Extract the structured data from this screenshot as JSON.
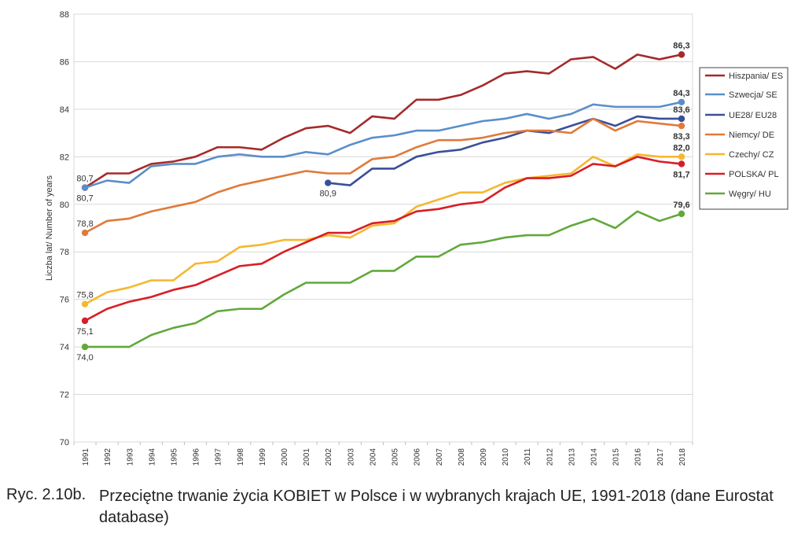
{
  "chart_data": {
    "type": "line",
    "title": "",
    "xlabel": "",
    "ylabel": "Liczba lat/ Number of years",
    "ylim": [
      70,
      88
    ],
    "yticks": [
      "70",
      "72",
      "74",
      "76",
      "78",
      "80",
      "82",
      "84",
      "86",
      "88"
    ],
    "x": [
      "1991",
      "1992",
      "1993",
      "1994",
      "1995",
      "1996",
      "1997",
      "1998",
      "1999",
      "2000",
      "2001",
      "2002",
      "2003",
      "2004",
      "2005",
      "2006",
      "2007",
      "2008",
      "2009",
      "2010",
      "2011",
      "2012",
      "2013",
      "2014",
      "2015",
      "2016",
      "2017",
      "2018"
    ],
    "legend_position": "right",
    "series": [
      {
        "name": "Hiszpania/ ES",
        "color": "#a52a2a",
        "values": [
          80.7,
          81.3,
          81.3,
          81.7,
          81.8,
          82.0,
          82.4,
          82.4,
          82.3,
          82.8,
          83.2,
          83.3,
          83.0,
          83.7,
          83.6,
          84.4,
          84.4,
          84.6,
          85.0,
          85.5,
          85.6,
          85.5,
          86.1,
          86.2,
          85.7,
          86.3,
          86.1,
          86.3
        ]
      },
      {
        "name": "Szwecja/ SE",
        "color": "#5b8ec9",
        "values": [
          80.7,
          81.0,
          80.9,
          81.6,
          81.7,
          81.7,
          82.0,
          82.1,
          82.0,
          82.0,
          82.2,
          82.1,
          82.5,
          82.8,
          82.9,
          83.1,
          83.1,
          83.3,
          83.5,
          83.6,
          83.8,
          83.6,
          83.8,
          84.2,
          84.1,
          84.1,
          84.1,
          84.3
        ]
      },
      {
        "name": "UE28/ EU28",
        "color": "#3a4f9a",
        "values": [
          null,
          null,
          null,
          null,
          null,
          null,
          null,
          null,
          null,
          null,
          null,
          80.9,
          80.8,
          81.5,
          81.5,
          82.0,
          82.2,
          82.3,
          82.6,
          82.8,
          83.1,
          83.0,
          83.3,
          83.6,
          83.3,
          83.7,
          83.6,
          83.6
        ]
      },
      {
        "name": "Niemcy/ DE",
        "color": "#e07a3a",
        "values": [
          78.8,
          79.3,
          79.4,
          79.7,
          79.9,
          80.1,
          80.5,
          80.8,
          81.0,
          81.2,
          81.4,
          81.3,
          81.3,
          81.9,
          82.0,
          82.4,
          82.7,
          82.7,
          82.8,
          83.0,
          83.1,
          83.1,
          83.0,
          83.6,
          83.1,
          83.5,
          83.4,
          83.3
        ]
      },
      {
        "name": "Czechy/ CZ",
        "color": "#f5b731",
        "values": [
          75.8,
          76.3,
          76.5,
          76.8,
          76.8,
          77.5,
          77.6,
          78.2,
          78.3,
          78.5,
          78.5,
          78.7,
          78.6,
          79.1,
          79.2,
          79.9,
          80.2,
          80.5,
          80.5,
          80.9,
          81.1,
          81.2,
          81.3,
          82.0,
          81.6,
          82.1,
          82.0,
          82.0
        ]
      },
      {
        "name": "POLSKA/ PL",
        "color": "#d81e25",
        "values": [
          75.1,
          75.6,
          75.9,
          76.1,
          76.4,
          76.6,
          77.0,
          77.4,
          77.5,
          78.0,
          78.4,
          78.8,
          78.8,
          79.2,
          79.3,
          79.7,
          79.8,
          80.0,
          80.1,
          80.7,
          81.1,
          81.1,
          81.2,
          81.7,
          81.6,
          82.0,
          81.8,
          81.7
        ]
      },
      {
        "name": "Węgry/ HU",
        "color": "#62a83b",
        "values": [
          74.0,
          74.0,
          74.0,
          74.5,
          74.8,
          75.0,
          75.5,
          75.6,
          75.6,
          76.2,
          76.7,
          76.7,
          76.7,
          77.2,
          77.2,
          77.8,
          77.8,
          78.3,
          78.4,
          78.6,
          78.7,
          78.7,
          79.1,
          79.4,
          79.0,
          79.7,
          79.3,
          79.6
        ]
      }
    ],
    "annotations": [
      {
        "series": 0,
        "index": 0,
        "label": "80,7",
        "pos": "above",
        "bold": false
      },
      {
        "series": 1,
        "index": 0,
        "label": "80,7",
        "pos": "below",
        "bold": false
      },
      {
        "series": 3,
        "index": 0,
        "label": "78,8",
        "pos": "above",
        "bold": false
      },
      {
        "series": 4,
        "index": 0,
        "label": "75,8",
        "pos": "above",
        "bold": false
      },
      {
        "series": 5,
        "index": 0,
        "label": "75,1",
        "pos": "below",
        "bold": false
      },
      {
        "series": 6,
        "index": 0,
        "label": "74,0",
        "pos": "below",
        "bold": false
      },
      {
        "series": 2,
        "index": 11,
        "label": "80,9",
        "pos": "below",
        "bold": false
      },
      {
        "series": 0,
        "index": 27,
        "label": "86,3",
        "pos": "above",
        "bold": true
      },
      {
        "series": 1,
        "index": 27,
        "label": "84,3",
        "pos": "above",
        "bold": true
      },
      {
        "series": 2,
        "index": 27,
        "label": "83,6",
        "pos": "above",
        "bold": true
      },
      {
        "series": 3,
        "index": 27,
        "label": "83,3",
        "pos": "below",
        "bold": true
      },
      {
        "series": 4,
        "index": 27,
        "label": "82,0",
        "pos": "above",
        "bold": true
      },
      {
        "series": 5,
        "index": 27,
        "label": "81,7",
        "pos": "below",
        "bold": true
      },
      {
        "series": 6,
        "index": 27,
        "label": "79,6",
        "pos": "above",
        "bold": true
      }
    ]
  },
  "caption": {
    "number": "Ryc. 2.10b.",
    "text": "Przeciętne trwanie życia KOBIET w Polsce i w wybranych krajach UE, 1991-2018 (dane Eurostat database)"
  }
}
